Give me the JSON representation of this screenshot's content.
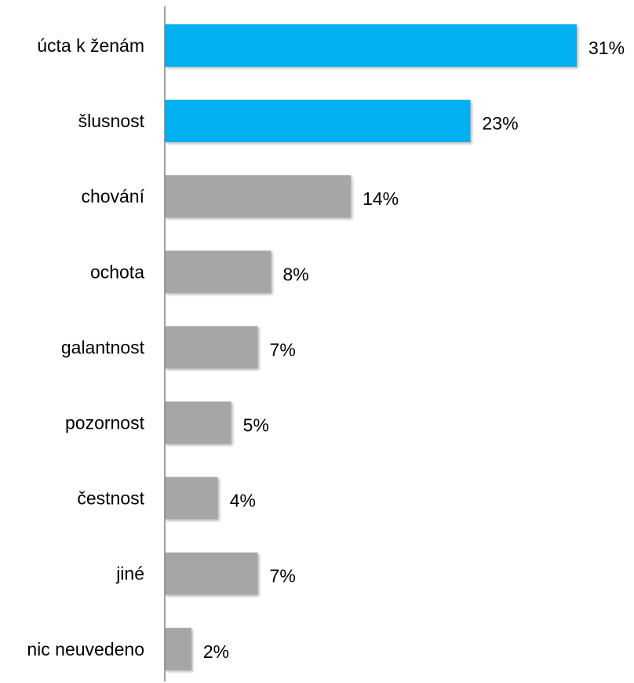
{
  "chart_data": {
    "type": "bar",
    "orientation": "horizontal",
    "categories": [
      "úcta k ženám",
      "šlusnost",
      "chování",
      "ochota",
      "galantnost",
      "pozornost",
      "čestnost",
      "jiné",
      "nic neuvedeno"
    ],
    "values": [
      31,
      23,
      14,
      8,
      7,
      5,
      4,
      7,
      2
    ],
    "value_labels": [
      "31%",
      "23%",
      "14%",
      "8%",
      "7%",
      "5%",
      "4%",
      "7%",
      "2%"
    ],
    "bar_colors": [
      "#00b0f0",
      "#00b0f0",
      "#a6a6a6",
      "#a6a6a6",
      "#a6a6a6",
      "#a6a6a6",
      "#a6a6a6",
      "#a6a6a6",
      "#a6a6a6"
    ],
    "axis_color": "#808080",
    "grid": false,
    "legend": "none",
    "xlim": [
      0,
      31
    ]
  }
}
